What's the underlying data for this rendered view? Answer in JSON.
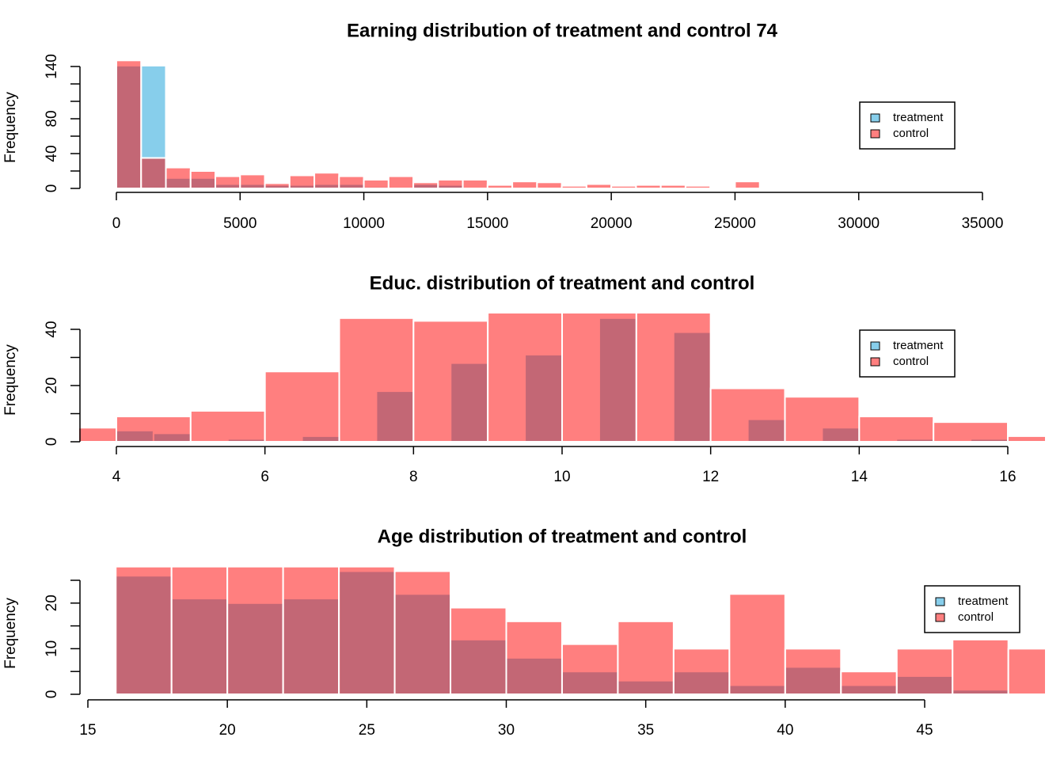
{
  "chart_data": [
    {
      "type": "histogram",
      "title": "Earning distribution of treatment and control 74",
      "ylabel": "Frequency",
      "series": [
        {
          "name": "treatment",
          "color": "#87ceeb",
          "bins": [
            0,
            1000,
            2000,
            3000,
            4000,
            5000,
            6000,
            7000,
            8000,
            9000,
            10000,
            11000,
            12000,
            13000,
            14000,
            15000,
            16000,
            17000,
            18000,
            19000,
            20000,
            21000,
            22000,
            23000,
            24000,
            25000,
            26000
          ],
          "values": [
            141,
            141,
            12,
            12,
            5,
            5,
            4,
            4,
            5,
            5,
            2,
            1,
            5,
            4,
            1,
            0,
            0,
            0,
            0,
            0,
            0,
            0,
            0,
            0,
            0,
            0
          ]
        },
        {
          "name": "control",
          "color": "#ff000080",
          "bins": [
            0,
            1000,
            2000,
            3000,
            4000,
            5000,
            6000,
            7000,
            8000,
            9000,
            10000,
            11000,
            12000,
            13000,
            14000,
            15000,
            16000,
            17000,
            18000,
            19000,
            20000,
            21000,
            22000,
            23000,
            24000,
            25000,
            26000
          ],
          "values": [
            147,
            35,
            24,
            20,
            14,
            16,
            6,
            15,
            18,
            14,
            10,
            14,
            7,
            10,
            10,
            4,
            8,
            7,
            3,
            5,
            3,
            4,
            4,
            3,
            0,
            8
          ]
        }
      ],
      "xlim": [
        0,
        35000
      ],
      "xticks": [
        0,
        5000,
        10000,
        15000,
        20000,
        25000,
        30000,
        35000
      ],
      "ylim": [
        0,
        140
      ],
      "yticks": [
        0,
        40,
        80,
        140
      ],
      "y_minor_ticks": [
        20,
        60,
        100,
        120
      ],
      "legend": "right"
    },
    {
      "type": "histogram",
      "title": "Educ. distribution of treatment and control",
      "ylabel": "Frequency",
      "series": [
        {
          "name": "treatment",
          "color": "#87ceeb",
          "bins": [
            4,
            4.5,
            5,
            5.5,
            6,
            6.5,
            7,
            7.5,
            8,
            8.5,
            9,
            9.5,
            10,
            10.5,
            11,
            11.5,
            12,
            12.5,
            13,
            13.5,
            14,
            14.5,
            15,
            15.5,
            16
          ],
          "values": [
            4,
            3,
            0,
            1,
            0,
            2,
            0,
            18,
            0,
            28,
            0,
            31,
            0,
            44,
            0,
            39,
            0,
            8,
            0,
            5,
            0,
            1,
            0,
            1
          ]
        },
        {
          "name": "control",
          "color": "#ff000080",
          "bins": [
            3,
            4,
            5,
            6,
            7,
            8,
            9,
            10,
            11,
            12,
            13,
            14,
            15,
            16,
            17
          ],
          "values": [
            5,
            9,
            11,
            25,
            44,
            43,
            46,
            46,
            46,
            19,
            16,
            9,
            7,
            2
          ]
        }
      ],
      "xlim": [
        4,
        16
      ],
      "xticks": [
        4,
        6,
        8,
        10,
        12,
        14,
        16
      ],
      "ylim": [
        0,
        40
      ],
      "yticks": [
        0,
        20,
        40
      ],
      "y_minor_ticks": [
        10,
        30
      ],
      "legend": "right"
    },
    {
      "type": "histogram",
      "title": "Age distribution of treatment and control",
      "ylabel": "Frequency",
      "series": [
        {
          "name": "treatment",
          "color": "#87ceeb",
          "bins": [
            16,
            18,
            20,
            22,
            24,
            26,
            28,
            30,
            32,
            34,
            36,
            38,
            40,
            42,
            44,
            46,
            48
          ],
          "values": [
            26,
            21,
            20,
            21,
            27,
            22,
            12,
            8,
            5,
            3,
            5,
            2,
            6,
            2,
            4,
            1
          ]
        },
        {
          "name": "control",
          "color": "#ff000080",
          "bins": [
            16,
            18,
            20,
            22,
            24,
            26,
            28,
            30,
            32,
            34,
            36,
            38,
            40,
            42,
            44,
            46,
            48,
            50
          ],
          "values": [
            28,
            28,
            28,
            28,
            28,
            27,
            19,
            16,
            11,
            16,
            10,
            22,
            10,
            5,
            10,
            12,
            10
          ]
        }
      ],
      "xlim": [
        15,
        45
      ],
      "xticks": [
        15,
        20,
        25,
        30,
        35,
        40,
        45
      ],
      "ylim": [
        0,
        25
      ],
      "yticks": [
        0,
        10,
        20
      ],
      "y_minor_ticks": [
        5,
        15,
        25
      ],
      "legend": "right"
    }
  ]
}
